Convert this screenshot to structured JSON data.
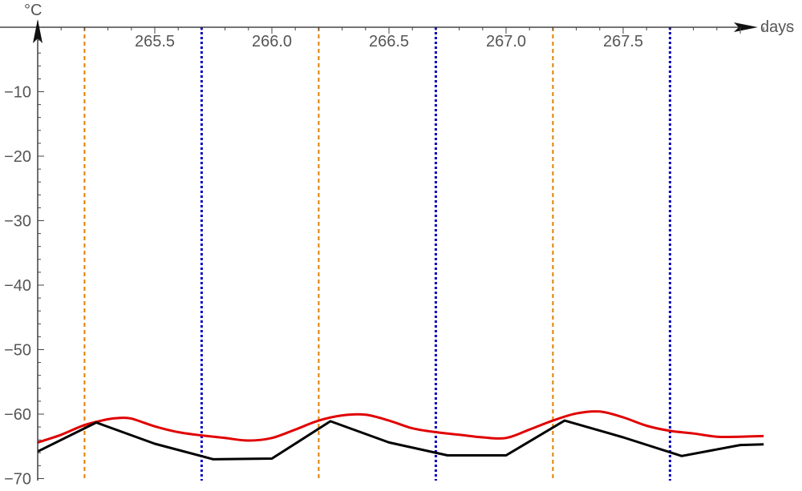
{
  "chart_data": {
    "type": "line",
    "title": "",
    "xlabel": "days",
    "ylabel": "°C",
    "xlim": [
      265.0,
      268.3
    ],
    "ylim": [
      -70,
      0
    ],
    "x_ticks": [
      265.5,
      266.0,
      266.5,
      267.0,
      267.5
    ],
    "x_tick_labels": [
      "265.5",
      "266.0",
      "266.5",
      "267.0",
      "267.5"
    ],
    "y_ticks": [
      -10,
      -20,
      -30,
      -40,
      -50,
      -60,
      -70
    ],
    "y_tick_labels": [
      "−10",
      "−20",
      "−30",
      "−40",
      "−50",
      "−60",
      "−70"
    ],
    "grid": false,
    "legend": "none",
    "series": [
      {
        "color": "#e00000",
        "x": [
          265.0,
          265.1,
          265.2,
          265.3,
          265.35,
          265.4,
          265.5,
          265.6,
          265.7,
          265.8,
          265.9,
          266.0,
          266.1,
          266.2,
          266.3,
          266.4,
          266.5,
          266.6,
          266.7,
          266.8,
          266.9,
          267.0,
          267.1,
          267.2,
          267.3,
          267.4,
          267.5,
          267.6,
          267.7,
          267.8,
          267.9,
          268.0,
          268.1
        ],
        "y": [
          -64.4,
          -63.2,
          -61.7,
          -60.8,
          -60.6,
          -60.7,
          -61.9,
          -62.8,
          -63.3,
          -63.7,
          -64.1,
          -63.7,
          -62.4,
          -61.0,
          -60.2,
          -60.1,
          -61.0,
          -62.2,
          -62.8,
          -63.2,
          -63.6,
          -63.7,
          -62.4,
          -61.0,
          -59.9,
          -59.6,
          -60.5,
          -61.8,
          -62.6,
          -63.0,
          -63.5,
          -63.5,
          -63.4
        ]
      },
      {
        "color": "#000000",
        "x": [
          265.0,
          265.25,
          265.5,
          265.75,
          266.0,
          266.25,
          266.5,
          266.75,
          267.0,
          267.25,
          267.5,
          267.75,
          268.0,
          268.1
        ],
        "y": [
          -65.8,
          -61.3,
          -64.6,
          -67.0,
          -66.9,
          -61.1,
          -64.4,
          -66.4,
          -66.4,
          -61.0,
          -63.6,
          -66.5,
          -64.8,
          -64.7
        ]
      }
    ],
    "vertical_lines": [
      {
        "x": 265.2,
        "color": "#e08000"
      },
      {
        "x": 265.7,
        "color": "#0000c0"
      },
      {
        "x": 266.2,
        "color": "#e08000"
      },
      {
        "x": 266.7,
        "color": "#0000c0"
      },
      {
        "x": 267.2,
        "color": "#e08000"
      },
      {
        "x": 267.7,
        "color": "#0000c0"
      }
    ]
  }
}
